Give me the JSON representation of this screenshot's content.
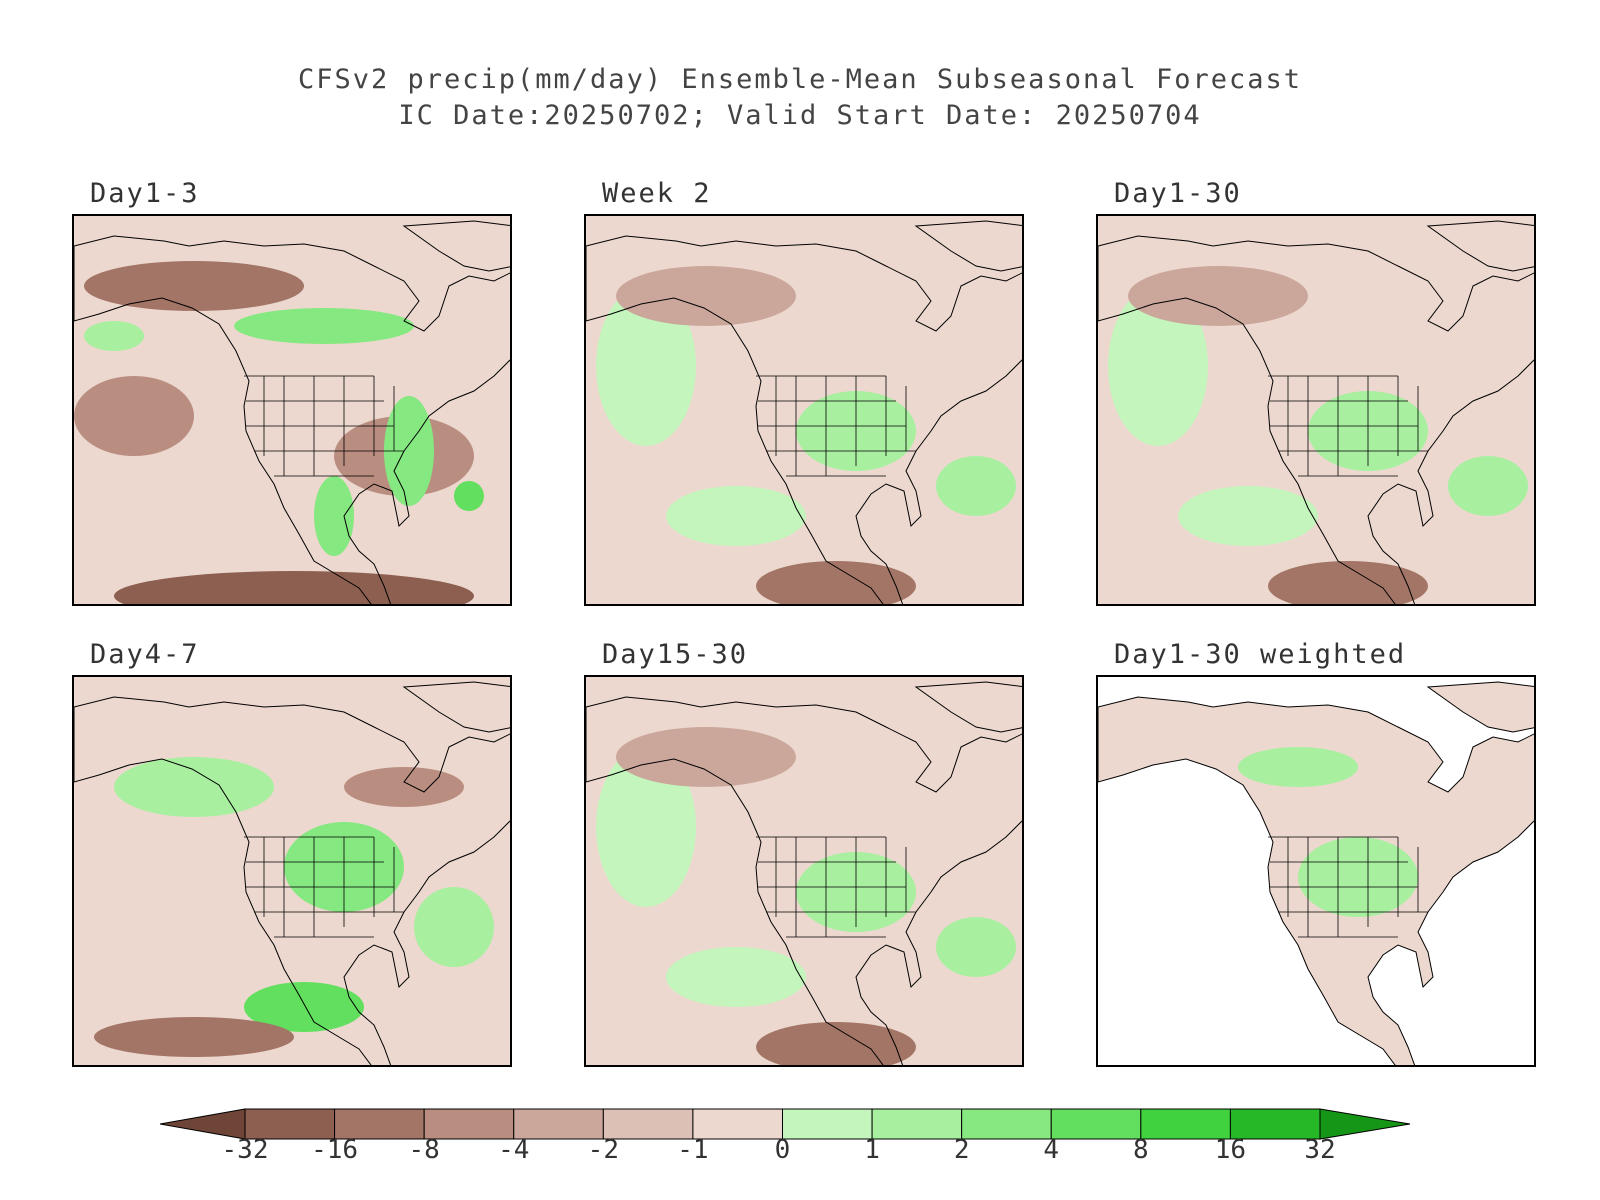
{
  "title": {
    "line1": "CFSv2 precip(mm/day) Ensemble-Mean Subseasonal Forecast",
    "line2": "IC Date:20250702; Valid Start Date: 20250704"
  },
  "panels": [
    {
      "label": "Day1-3",
      "pattern": "mostly-dry",
      "masked": false
    },
    {
      "label": "Week 2",
      "pattern": "mixed",
      "masked": false
    },
    {
      "label": "Day1-30",
      "pattern": "mixed",
      "masked": false
    },
    {
      "label": "Day4-7",
      "pattern": "mixed-wet-central",
      "masked": false
    },
    {
      "label": "Day15-30",
      "pattern": "mixed",
      "masked": false
    },
    {
      "label": "Day1-30 weighted",
      "pattern": "land-only",
      "masked": true
    }
  ],
  "legend": {
    "labels": [
      "-32",
      "-16",
      "-8",
      "-4",
      "-2",
      "-1",
      "0",
      "1",
      "2",
      "4",
      "8",
      "16",
      "32"
    ],
    "colors": [
      "#6e4536",
      "#8c5f50",
      "#a37566",
      "#b98e80",
      "#cba79b",
      "#ddc0b5",
      "#ecd8cf",
      "#c4f5bd",
      "#a8f0a0",
      "#86e880",
      "#62df5e",
      "#40d23f",
      "#27b827",
      "#169616"
    ]
  },
  "colors": {
    "land_base": "#ecd8cf",
    "ocean_base": "#ecd8cf",
    "boundary": "#000000",
    "masked": "#ffffff"
  }
}
